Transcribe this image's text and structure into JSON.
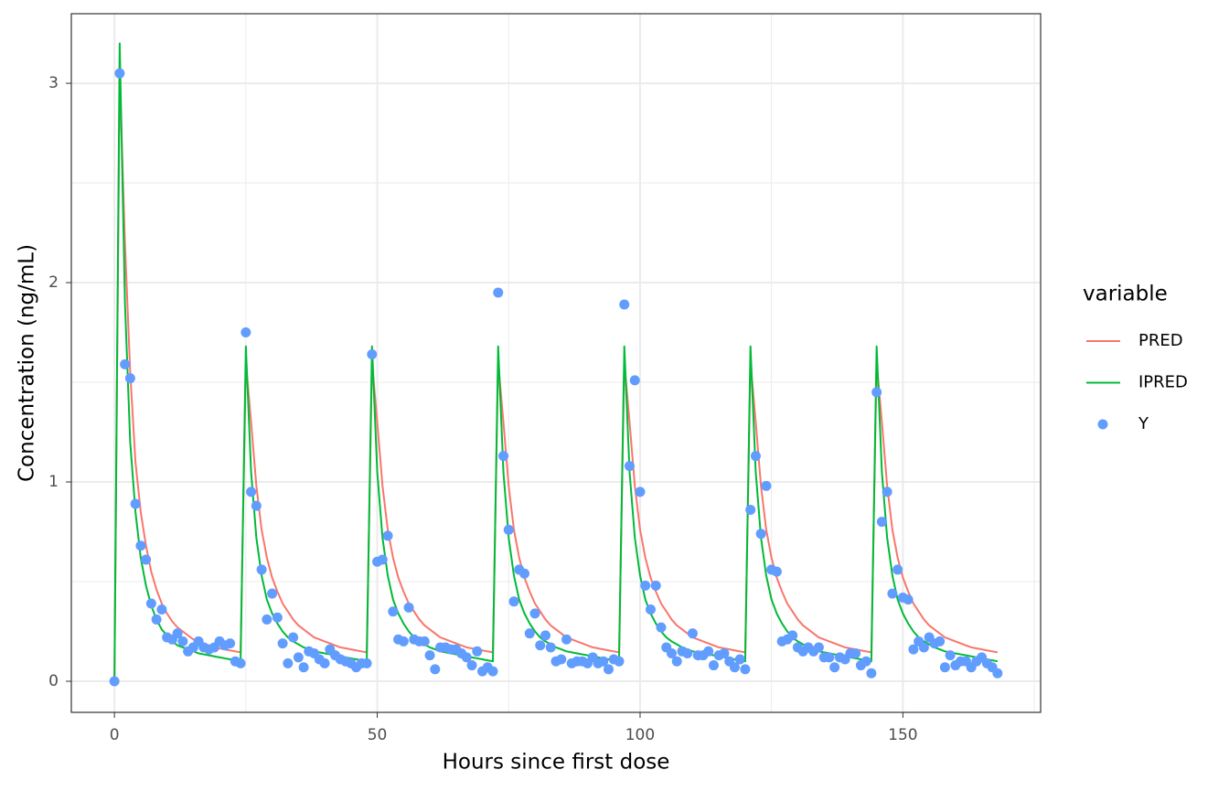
{
  "chart_data": {
    "type": "line",
    "x_label": "Hours since first dose",
    "y_label": "Concentration (ng/mL)",
    "legend_title": "variable",
    "legend_position": "right",
    "grid": true,
    "xlim": [
      -8.2,
      176.2
    ],
    "xticks": [
      0,
      50,
      100,
      150
    ],
    "ylim": [
      -0.156,
      3.349
    ],
    "yticks": [
      0,
      1,
      2,
      3
    ],
    "x": [
      0,
      1,
      2,
      3,
      4,
      5,
      6,
      7,
      8,
      9,
      10,
      11,
      12,
      13,
      14,
      15,
      16,
      17,
      18,
      19,
      20,
      21,
      22,
      23,
      24,
      25,
      26,
      27,
      28,
      29,
      30,
      31,
      32,
      33,
      34,
      35,
      36,
      37,
      38,
      39,
      40,
      41,
      42,
      43,
      44,
      45,
      46,
      47,
      48,
      49,
      50,
      51,
      52,
      53,
      54,
      55,
      56,
      57,
      58,
      59,
      60,
      61,
      62,
      63,
      64,
      65,
      66,
      67,
      68,
      69,
      70,
      71,
      72,
      73,
      74,
      75,
      76,
      77,
      78,
      79,
      80,
      81,
      82,
      83,
      84,
      85,
      86,
      87,
      88,
      89,
      90,
      91,
      92,
      93,
      94,
      95,
      96,
      97,
      98,
      99,
      100,
      101,
      102,
      103,
      104,
      105,
      106,
      107,
      108,
      109,
      110,
      111,
      112,
      113,
      114,
      115,
      116,
      117,
      118,
      119,
      120,
      121,
      122,
      123,
      124,
      125,
      126,
      127,
      128,
      129,
      130,
      131,
      132,
      133,
      134,
      135,
      136,
      137,
      138,
      139,
      140,
      141,
      142,
      143,
      144,
      145,
      146,
      147,
      148,
      149,
      150,
      151,
      152,
      153,
      154,
      155,
      156,
      157,
      158,
      159,
      160,
      161,
      162,
      163,
      164,
      165,
      166,
      167,
      168
    ],
    "series": [
      {
        "name": "PRED",
        "color": "#F8766D",
        "style": "line",
        "values": [
          0,
          3.05,
          2.2,
          1.55,
          1.1,
          0.85,
          0.68,
          0.55,
          0.46,
          0.39,
          0.34,
          0.3,
          0.27,
          0.25,
          0.23,
          0.21,
          0.2,
          0.19,
          0.18,
          0.17,
          0.165,
          0.16,
          0.155,
          0.15,
          0.145,
          1.6,
          1.3,
          0.98,
          0.76,
          0.62,
          0.52,
          0.45,
          0.39,
          0.35,
          0.31,
          0.28,
          0.26,
          0.24,
          0.22,
          0.21,
          0.2,
          0.19,
          0.18,
          0.17,
          0.165,
          0.16,
          0.155,
          0.15,
          0.145,
          1.6,
          1.3,
          0.98,
          0.76,
          0.62,
          0.52,
          0.45,
          0.39,
          0.35,
          0.31,
          0.28,
          0.26,
          0.24,
          0.22,
          0.21,
          0.2,
          0.19,
          0.18,
          0.17,
          0.165,
          0.16,
          0.155,
          0.15,
          0.145,
          1.6,
          1.3,
          0.98,
          0.76,
          0.62,
          0.52,
          0.45,
          0.39,
          0.35,
          0.31,
          0.28,
          0.26,
          0.24,
          0.22,
          0.21,
          0.2,
          0.19,
          0.18,
          0.17,
          0.165,
          0.16,
          0.155,
          0.15,
          0.145,
          1.6,
          1.3,
          0.98,
          0.76,
          0.62,
          0.52,
          0.45,
          0.39,
          0.35,
          0.31,
          0.28,
          0.26,
          0.24,
          0.22,
          0.21,
          0.2,
          0.19,
          0.18,
          0.17,
          0.165,
          0.16,
          0.155,
          0.15,
          0.145,
          1.6,
          1.3,
          0.98,
          0.76,
          0.62,
          0.52,
          0.45,
          0.39,
          0.35,
          0.31,
          0.28,
          0.26,
          0.24,
          0.22,
          0.21,
          0.2,
          0.19,
          0.18,
          0.17,
          0.165,
          0.16,
          0.155,
          0.15,
          0.145,
          1.6,
          1.3,
          0.98,
          0.76,
          0.62,
          0.52,
          0.45,
          0.39,
          0.35,
          0.31,
          0.28,
          0.26,
          0.24,
          0.22,
          0.21,
          0.2,
          0.19,
          0.18,
          0.17,
          0.165,
          0.16,
          0.155,
          0.15,
          0.145
        ]
      },
      {
        "name": "IPRED",
        "color": "#00BA38",
        "style": "line",
        "values": [
          0,
          3.2,
          1.9,
          1.2,
          0.85,
          0.62,
          0.48,
          0.38,
          0.31,
          0.26,
          0.23,
          0.2,
          0.18,
          0.17,
          0.16,
          0.15,
          0.14,
          0.135,
          0.13,
          0.125,
          0.12,
          0.115,
          0.11,
          0.105,
          0.1,
          1.68,
          1.05,
          0.72,
          0.53,
          0.41,
          0.34,
          0.29,
          0.25,
          0.22,
          0.2,
          0.185,
          0.17,
          0.16,
          0.15,
          0.145,
          0.14,
          0.135,
          0.13,
          0.125,
          0.12,
          0.115,
          0.11,
          0.105,
          0.1,
          1.68,
          1.05,
          0.72,
          0.53,
          0.41,
          0.34,
          0.29,
          0.25,
          0.22,
          0.2,
          0.185,
          0.17,
          0.16,
          0.15,
          0.145,
          0.14,
          0.135,
          0.13,
          0.125,
          0.12,
          0.115,
          0.11,
          0.105,
          0.1,
          1.68,
          1.05,
          0.72,
          0.53,
          0.41,
          0.34,
          0.29,
          0.25,
          0.22,
          0.2,
          0.185,
          0.17,
          0.16,
          0.15,
          0.145,
          0.14,
          0.135,
          0.13,
          0.125,
          0.12,
          0.115,
          0.11,
          0.105,
          0.1,
          1.68,
          1.05,
          0.72,
          0.53,
          0.41,
          0.34,
          0.29,
          0.25,
          0.22,
          0.2,
          0.185,
          0.17,
          0.16,
          0.15,
          0.145,
          0.14,
          0.135,
          0.13,
          0.125,
          0.12,
          0.115,
          0.11,
          0.105,
          0.1,
          1.68,
          1.05,
          0.72,
          0.53,
          0.41,
          0.34,
          0.29,
          0.25,
          0.22,
          0.2,
          0.185,
          0.17,
          0.16,
          0.15,
          0.145,
          0.14,
          0.135,
          0.13,
          0.125,
          0.12,
          0.115,
          0.11,
          0.105,
          0.1,
          1.68,
          1.05,
          0.72,
          0.53,
          0.41,
          0.34,
          0.29,
          0.25,
          0.22,
          0.2,
          0.185,
          0.17,
          0.16,
          0.15,
          0.145,
          0.14,
          0.135,
          0.13,
          0.125,
          0.12,
          0.115,
          0.11,
          0.105,
          0.1
        ]
      },
      {
        "name": "Y",
        "color": "#619CFF",
        "style": "point",
        "values": [
          0,
          3.05,
          1.59,
          1.52,
          0.89,
          0.68,
          0.61,
          0.39,
          0.31,
          0.36,
          0.22,
          0.21,
          0.24,
          0.2,
          0.15,
          0.17,
          0.2,
          0.17,
          0.16,
          0.17,
          0.2,
          0.18,
          0.19,
          0.1,
          0.09,
          1.75,
          0.95,
          0.88,
          0.56,
          0.31,
          0.44,
          0.32,
          0.19,
          0.09,
          0.22,
          0.12,
          0.07,
          0.15,
          0.14,
          0.11,
          0.09,
          0.16,
          0.13,
          0.11,
          0.1,
          0.09,
          0.07,
          0.09,
          0.09,
          1.64,
          0.6,
          0.61,
          0.73,
          0.35,
          0.21,
          0.2,
          0.37,
          0.21,
          0.2,
          0.2,
          0.13,
          0.06,
          0.17,
          0.17,
          0.16,
          0.16,
          0.14,
          0.12,
          0.08,
          0.15,
          0.05,
          0.07,
          0.05,
          1.95,
          1.13,
          0.76,
          0.4,
          0.56,
          0.54,
          0.24,
          0.34,
          0.18,
          0.23,
          0.17,
          0.1,
          0.11,
          0.21,
          0.09,
          0.1,
          0.1,
          0.09,
          0.12,
          0.09,
          0.1,
          0.06,
          0.11,
          0.1,
          1.89,
          1.08,
          1.51,
          0.95,
          0.48,
          0.36,
          0.48,
          0.27,
          0.17,
          0.14,
          0.1,
          0.15,
          0.14,
          0.24,
          0.13,
          0.13,
          0.15,
          0.08,
          0.13,
          0.14,
          0.1,
          0.07,
          0.11,
          0.06,
          0.86,
          1.13,
          0.74,
          0.98,
          0.56,
          0.55,
          0.2,
          0.21,
          0.23,
          0.17,
          0.15,
          0.17,
          0.15,
          0.17,
          0.12,
          0.12,
          0.07,
          0.12,
          0.11,
          0.14,
          0.14,
          0.08,
          0.1,
          0.04,
          1.45,
          0.8,
          0.95,
          0.44,
          0.56,
          0.42,
          0.41,
          0.16,
          0.2,
          0.17,
          0.22,
          0.19,
          0.2,
          0.07,
          0.13,
          0.08,
          0.1,
          0.1,
          0.07,
          0.1,
          0.12,
          0.09,
          0.07,
          0.04
        ]
      }
    ]
  }
}
